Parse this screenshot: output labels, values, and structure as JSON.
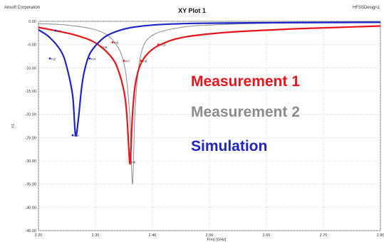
{
  "header": {
    "left": "Ansoft Corporation",
    "title": "XY Plot 1",
    "right": "HFSSDesign1"
  },
  "chart_data": {
    "type": "line",
    "title": "XY Plot 1",
    "xlabel": "Freq [GHz]",
    "ylabel": "Y1",
    "xlim": [
      2.2,
      2.8
    ],
    "ylim": [
      -45,
      0
    ],
    "grid": true,
    "x_ticks": [
      "2.20",
      "2.30",
      "2.40",
      "2.50",
      "2.60",
      "2.70",
      "2.80"
    ],
    "y_ticks": [
      "0.00",
      "-5.00",
      "-10.00",
      "-15.00",
      "-20.00",
      "-25.00",
      "-30.00",
      "-35.00",
      "-40.00",
      "-45.00"
    ],
    "legend_placement": "right",
    "series": [
      {
        "name": "Measurement 1",
        "color": "#e8141b",
        "x": [
          2.2,
          2.23,
          2.26,
          2.29,
          2.31,
          2.33,
          2.34,
          2.35,
          2.355,
          2.36,
          2.362,
          2.365,
          2.37,
          2.38,
          2.4,
          2.43,
          2.46,
          2.5,
          2.55,
          2.6,
          2.65,
          2.7,
          2.75,
          2.8
        ],
        "y": [
          -1.3,
          -2.0,
          -2.8,
          -4.0,
          -5.5,
          -8.0,
          -10.5,
          -15.0,
          -20.0,
          -30.2,
          -28.0,
          -20.0,
          -13.5,
          -9.0,
          -6.0,
          -4.2,
          -3.3,
          -2.7,
          -2.2,
          -1.9,
          -1.6,
          -1.4,
          -1.2,
          -1.0
        ]
      },
      {
        "name": "Measurement 2",
        "color": "#8c8c8c",
        "x": [
          2.2,
          2.25,
          2.3,
          2.33,
          2.35,
          2.36,
          2.365,
          2.37,
          2.38,
          2.4,
          2.45,
          2.5,
          2.6,
          2.7,
          2.8
        ],
        "y": [
          -0.5,
          -0.8,
          -1.8,
          -4.0,
          -9.0,
          -20.0,
          -35.0,
          -18.0,
          -7.0,
          -3.0,
          -1.3,
          -0.8,
          -0.4,
          -0.3,
          -0.2
        ]
      },
      {
        "name": "Simulation",
        "color": "#1f24c9",
        "x": [
          2.2,
          2.22,
          2.24,
          2.25,
          2.26,
          2.265,
          2.27,
          2.275,
          2.28,
          2.29,
          2.31,
          2.33,
          2.36,
          2.4,
          2.45,
          2.5,
          2.6,
          2.7,
          2.8
        ],
        "y": [
          -1.8,
          -3.5,
          -6.5,
          -10.0,
          -16.0,
          -24.5,
          -21.0,
          -15.0,
          -11.0,
          -7.0,
          -4.0,
          -2.5,
          -1.4,
          -0.8,
          -0.5,
          -0.4,
          -0.3,
          -0.25,
          -0.2
        ]
      }
    ],
    "marker_labels": [
      "m1",
      "m2",
      "m3",
      "m4",
      "m5",
      "m6",
      "m7",
      "m8",
      "m9",
      "m10"
    ]
  }
}
